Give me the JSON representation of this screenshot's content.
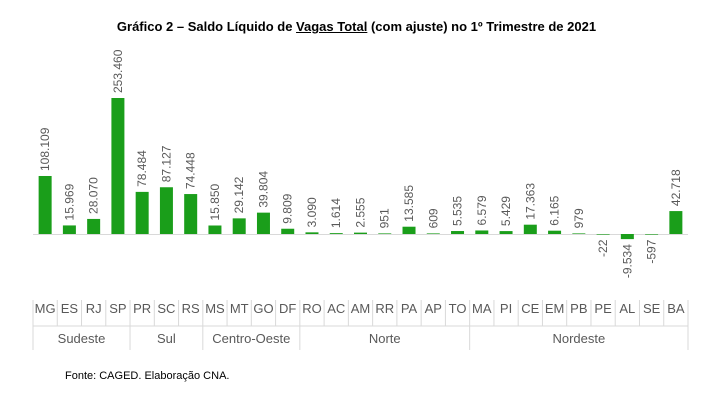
{
  "title": {
    "pre": "Gráfico 2 – Saldo Líquido de ",
    "underlined": "Vagas Total",
    "post": " (com ajuste) no 1º Trimestre de 2021"
  },
  "source": "Fonte: CAGED. Elaboração CNA.",
  "chart_data": {
    "type": "bar",
    "title": "Gráfico 2 – Saldo Líquido de Vagas Total (com ajuste) no 1º Trimestre de 2021",
    "xlabel": "",
    "ylabel": "",
    "ylim": [
      -30000,
      253460
    ],
    "grid": false,
    "legend": "none",
    "bar_color": "#1a9e1a",
    "categories": [
      "MG",
      "ES",
      "RJ",
      "SP",
      "PR",
      "SC",
      "RS",
      "MS",
      "MT",
      "GO",
      "DF",
      "RO",
      "AC",
      "AM",
      "RR",
      "PA",
      "AP",
      "TO",
      "MA",
      "PI",
      "CE",
      "EM",
      "PB",
      "PE",
      "AL",
      "SE",
      "BA"
    ],
    "values": [
      108109,
      15969,
      28070,
      253460,
      78484,
      87127,
      74448,
      15850,
      29142,
      39804,
      9809,
      3090,
      1614,
      2555,
      951,
      13585,
      609,
      5535,
      6579,
      5429,
      17363,
      6165,
      979,
      -22,
      -9534,
      -597,
      42718
    ],
    "value_labels": [
      "108.109",
      "15.969",
      "28.070",
      "253.460",
      "78.484",
      "87.127",
      "74.448",
      "15.850",
      "29.142",
      "39.804",
      "9.809",
      "3.090",
      "1.614",
      "2.555",
      "951",
      "13.585",
      "609",
      "5.535",
      "6.579",
      "5.429",
      "17.363",
      "6.165",
      "979",
      "-22",
      "-9.534",
      "-597",
      "42.718"
    ],
    "groups": [
      {
        "name": "Sudeste",
        "start": 0,
        "end": 3
      },
      {
        "name": "Sul",
        "start": 4,
        "end": 6
      },
      {
        "name": "Centro-Oeste",
        "start": 7,
        "end": 10
      },
      {
        "name": "Norte",
        "start": 11,
        "end": 17
      },
      {
        "name": "Nordeste",
        "start": 18,
        "end": 26
      }
    ]
  }
}
